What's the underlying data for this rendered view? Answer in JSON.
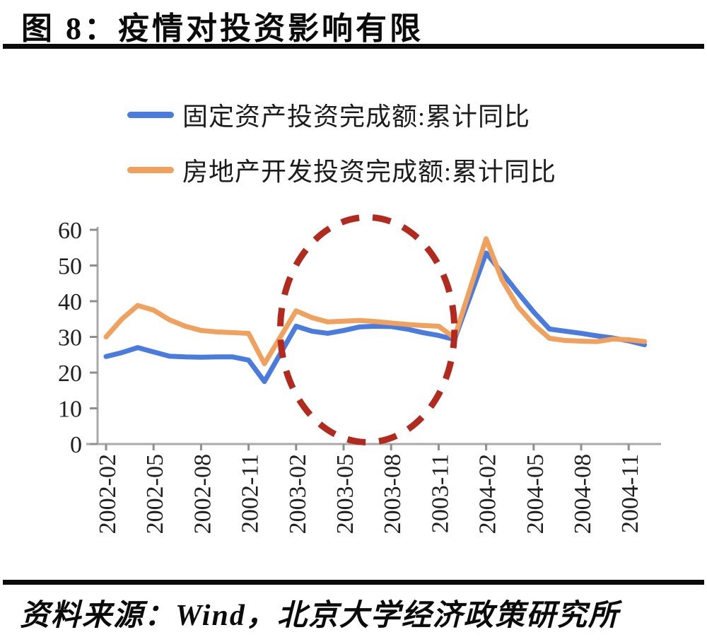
{
  "title": "图 8：疫情对投资影响有限",
  "legend": [
    {
      "label": "固定资产投资完成额:累计同比",
      "color": "#4a7ce0"
    },
    {
      "label": "房地产开发投资完成额:累计同比",
      "color": "#f0a15e"
    }
  ],
  "source": "资料来源：Wind，北京大学经济政策研究所",
  "chart_data": {
    "type": "line",
    "x": [
      "2002-02",
      "2002-03",
      "2002-04",
      "2002-05",
      "2002-06",
      "2002-07",
      "2002-08",
      "2002-09",
      "2002-10",
      "2002-11",
      "2002-12",
      "2003-02",
      "2003-03",
      "2003-04",
      "2003-05",
      "2003-06",
      "2003-07",
      "2003-08",
      "2003-09",
      "2003-10",
      "2003-11",
      "2003-12",
      "2004-02",
      "2004-03",
      "2004-04",
      "2004-05",
      "2004-06",
      "2004-07",
      "2004-08",
      "2004-09",
      "2004-10",
      "2004-11",
      "2004-12"
    ],
    "series": [
      {
        "name": "固定资产投资完成额:累计同比",
        "color": "#4a7ce0",
        "values": [
          24.5,
          25.6,
          27.0,
          25.8,
          24.6,
          24.4,
          24.3,
          24.4,
          24.4,
          23.5,
          17.5,
          33.0,
          31.6,
          31.0,
          31.8,
          32.8,
          33.0,
          32.9,
          32.2,
          31.2,
          30.4,
          29.3,
          53.5,
          48.0,
          42.4,
          37.0,
          32.2,
          31.6,
          31.0,
          30.3,
          29.7,
          28.9,
          27.8
        ]
      },
      {
        "name": "房地产开发投资完成额:累计同比",
        "color": "#f0a15e",
        "values": [
          30.0,
          35.0,
          38.8,
          37.5,
          34.8,
          33.0,
          31.8,
          31.4,
          31.2,
          31.0,
          22.5,
          37.3,
          35.4,
          34.2,
          34.4,
          34.6,
          34.3,
          33.9,
          33.5,
          33.2,
          33.0,
          29.8,
          57.5,
          46.0,
          38.5,
          33.5,
          29.6,
          29.0,
          28.8,
          28.7,
          29.4,
          29.2,
          28.7
        ]
      }
    ],
    "x_tick_labels": [
      "2002-02",
      "2002-05",
      "2002-08",
      "2002-11",
      "2003-02",
      "2003-05",
      "2003-08",
      "2003-11",
      "2004-02",
      "2004-05",
      "2004-08",
      "2004-11"
    ],
    "yticks": [
      0,
      10,
      20,
      30,
      40,
      50,
      60
    ],
    "ylim": [
      0,
      60
    ],
    "grid": false,
    "legend_position": "top",
    "annotation": {
      "type": "ellipse",
      "style": "dashed",
      "color": "#b22a1e",
      "x_from": "2003-01",
      "x_to": "2003-12",
      "value_from": 0.5,
      "value_to": 63.5
    }
  }
}
